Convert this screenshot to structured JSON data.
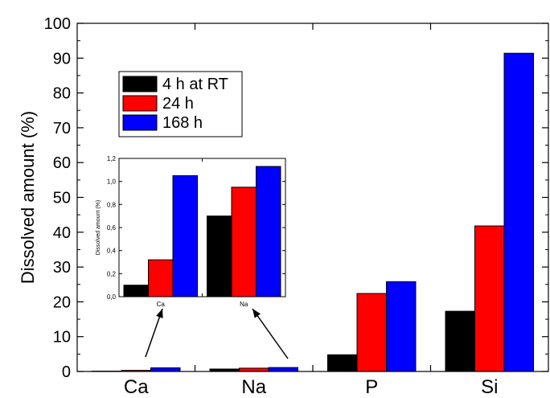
{
  "chart_data": [
    {
      "type": "bar",
      "ylabel": "Dissolved amount (%)",
      "ylim": [
        0,
        100
      ],
      "y_ticks": [
        "0",
        "10",
        "20",
        "30",
        "40",
        "50",
        "60",
        "70",
        "80",
        "90",
        "100"
      ],
      "categories": [
        "Ca",
        "Na",
        "P",
        "Si"
      ],
      "legend_position": "top-left",
      "series": [
        {
          "name": "4 h at RT",
          "color": "#000000",
          "values": [
            0.1,
            0.7,
            4.8,
            17.3
          ]
        },
        {
          "name": "24 h",
          "color": "#ff0000",
          "values": [
            0.32,
            0.95,
            22.4,
            41.8
          ]
        },
        {
          "name": "168 h",
          "color": "#0000ff",
          "values": [
            1.05,
            1.13,
            25.8,
            91.4
          ]
        }
      ]
    },
    {
      "type": "bar",
      "ylabel": "Dissolved amount (%)",
      "ylim": [
        0,
        1.2
      ],
      "y_ticks": [
        "0,0",
        "0,2",
        "0,4",
        "0,6",
        "0,8",
        "1,0",
        "1,2"
      ],
      "categories": [
        "Ca",
        "Na"
      ],
      "series": [
        {
          "name": "4 h at RT",
          "color": "#000000",
          "values": [
            0.1,
            0.7
          ]
        },
        {
          "name": "24 h",
          "color": "#ff0000",
          "values": [
            0.32,
            0.95
          ]
        },
        {
          "name": "168 h",
          "color": "#0000ff",
          "values": [
            1.05,
            1.13
          ]
        }
      ]
    }
  ]
}
